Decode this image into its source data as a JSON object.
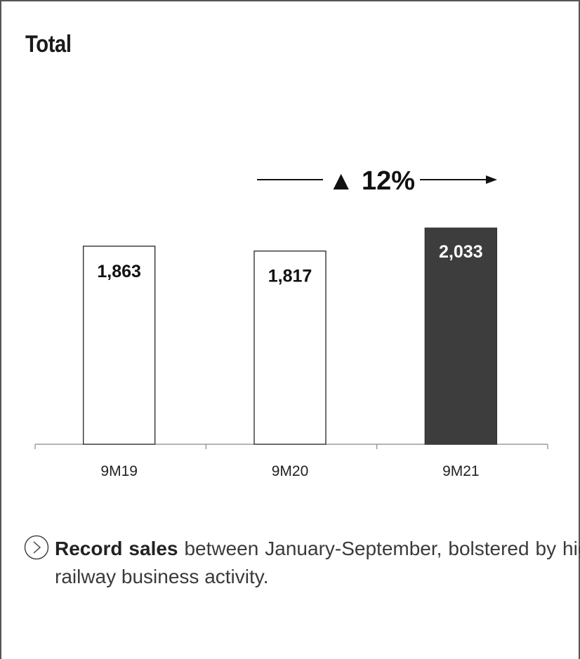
{
  "title": "Total",
  "chart_data": {
    "type": "bar",
    "categories": [
      "9M19",
      "9M20",
      "9M21"
    ],
    "values": [
      1863,
      1817,
      2033
    ],
    "value_labels": [
      "1,863",
      "1,817",
      "2,033"
    ],
    "highlight_index": 2,
    "bar_colors": {
      "default": "#ffffff",
      "highlight": "#3d3d3d"
    },
    "bar_stroke": "#333333",
    "growth_label": "▲ 12%",
    "ylim": [
      0,
      2033
    ],
    "grid": false,
    "legend": "none"
  },
  "note": {
    "icon": "chevron-right-circle-icon",
    "bold": "Record sales",
    "text": " between January-September, bolstered by high railway business activity."
  }
}
